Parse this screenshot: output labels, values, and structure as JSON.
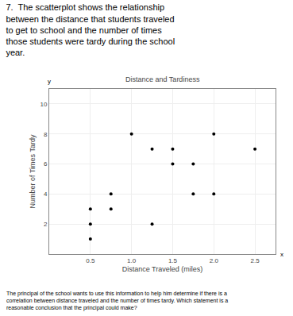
{
  "chart_data": {
    "type": "scatter",
    "title": "Distance and Tardiness",
    "subtitle": "7.  The scatterplot shows the relationship\nbetween the distance that students traveled\nto get to school and the number of times\nthose students were tardy during the school\nyear.",
    "xlabel": "Distance Traveled (miles)",
    "ylabel": "Number of Times Tardy",
    "x": [
      0.5,
      0.5,
      0.75,
      0.75,
      1.0,
      1.25,
      1.5,
      1.5,
      1.75,
      1.75,
      2.0,
      2.0,
      2.5,
      1.25,
      0.5
    ],
    "values": [
      1,
      3,
      4,
      3,
      8,
      7,
      7,
      6,
      6,
      4,
      8,
      4,
      7,
      2,
      2
    ],
    "color": "#000000",
    "xlim": [
      0,
      2.75
    ],
    "ylim": [
      0,
      11
    ],
    "xticks": [
      0.5,
      {
        "value": 1,
        "label": "1.0"
      },
      1.5,
      {
        "value": 2,
        "label": "2.0"
      },
      2.5
    ],
    "yticks": [
      2,
      4,
      6,
      8,
      10
    ],
    "grid": true,
    "annotations": [
      {
        "text": "The principal of the school wants to use this information to help him determine if there is a\ncorrelation between distance traveled and the number of times tardy. Which statement is a\nreasonable conclusion that the principal could make?"
      },
      {
        "text": "x"
      },
      {
        "text": "y"
      }
    ]
  }
}
